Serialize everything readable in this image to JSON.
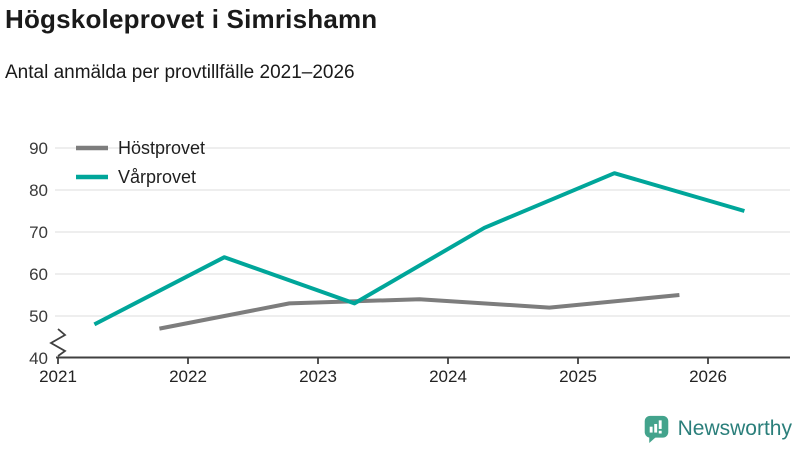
{
  "chart_data": {
    "type": "line",
    "title": "Högskoleprovet i Simrishamn",
    "subtitle": "Antal anmälda per provtillfälle 2021–2026",
    "xlabel": "",
    "ylabel": "",
    "x_ticks": [
      "2021",
      "2022",
      "2023",
      "2024",
      "2025",
      "2026"
    ],
    "y_ticks": [
      40,
      50,
      60,
      70,
      80,
      90
    ],
    "ylim": [
      40,
      90
    ],
    "xlim": [
      2021,
      2026.6
    ],
    "grid": "horizontal",
    "axis_break": true,
    "legend_position": "top-left",
    "series": [
      {
        "name": "Höstprovet",
        "color": "#7d7d7d",
        "points": [
          {
            "x": 2021.78,
            "y": 47
          },
          {
            "x": 2022.78,
            "y": 53
          },
          {
            "x": 2023.78,
            "y": 54
          },
          {
            "x": 2024.78,
            "y": 52
          },
          {
            "x": 2025.78,
            "y": 55
          }
        ]
      },
      {
        "name": "Vårprovet",
        "color": "#00a69a",
        "points": [
          {
            "x": 2021.28,
            "y": 48
          },
          {
            "x": 2022.28,
            "y": 64
          },
          {
            "x": 2023.28,
            "y": 53
          },
          {
            "x": 2024.28,
            "y": 71
          },
          {
            "x": 2025.28,
            "y": 84
          },
          {
            "x": 2026.28,
            "y": 75
          }
        ]
      }
    ]
  },
  "axis_style": {
    "grid_color": "#e3e3e3",
    "axis_color": "#404040",
    "tick_label_color": "#3a3a3a",
    "legend_label_color": "#1f1f1f"
  },
  "logo": {
    "text": "Newsworthy",
    "icon": "bar-chart-speech-bubble-icon",
    "text_color": "#2b7f7b",
    "icon_color": "#43a38c"
  }
}
